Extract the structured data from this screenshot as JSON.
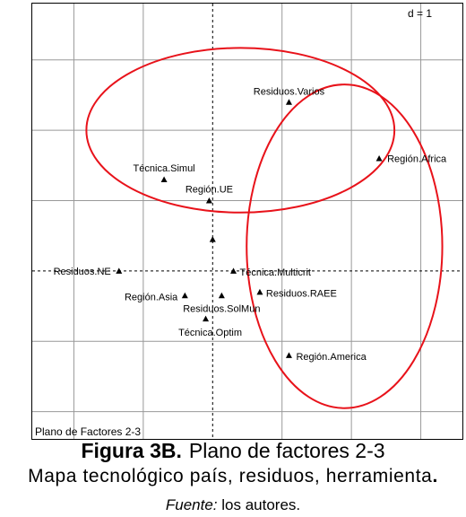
{
  "chart_data": {
    "type": "scatter",
    "title": "",
    "xlabel": "",
    "ylabel": "",
    "grid": true,
    "xlim": [
      -2.6,
      3.6
    ],
    "ylim": [
      -2.4,
      3.8
    ],
    "d_label": "d = 1",
    "plane_label": "Plano de Factores 2-3",
    "points": [
      {
        "label": "Residuos.Varios",
        "x": 1.1,
        "y": 2.4
      },
      {
        "label": "Región.Africa",
        "x": 2.4,
        "y": 1.6
      },
      {
        "label": "Técnica.Simul",
        "x": -0.7,
        "y": 1.3
      },
      {
        "label": "Región.UE",
        "x": -0.05,
        "y": 1.0
      },
      {
        "label": "",
        "x": 0.0,
        "y": 0.45
      },
      {
        "label": "Residuos.NE",
        "x": -1.35,
        "y": 0.0
      },
      {
        "label": "Técnica.Multicrit",
        "x": 0.3,
        "y": 0.0
      },
      {
        "label": "Región.Asia",
        "x": -0.4,
        "y": -0.35
      },
      {
        "label": "Residuos.SolMun",
        "x": 0.13,
        "y": -0.35
      },
      {
        "label": "Residuos.RAEE",
        "x": 0.68,
        "y": -0.3
      },
      {
        "label": "Técnica.Optim",
        "x": -0.1,
        "y": -0.68
      },
      {
        "label": "Región.America",
        "x": 1.1,
        "y": -1.2
      }
    ],
    "ellipses": [
      {
        "cx": 0.4,
        "cy": 2.0,
        "rx": 2.22,
        "ry": 1.17
      },
      {
        "cx": 1.9,
        "cy": 0.35,
        "rx": 1.41,
        "ry": 2.3
      }
    ]
  },
  "caption": {
    "figure_label": "Figura 3B.",
    "figure_title": "Plano de factores 2-3",
    "subtitle": "Mapa tecnológico país, residuos, herramienta",
    "subtitle_end": ".",
    "source_label": "Fuente:",
    "source_text": "los autores."
  }
}
